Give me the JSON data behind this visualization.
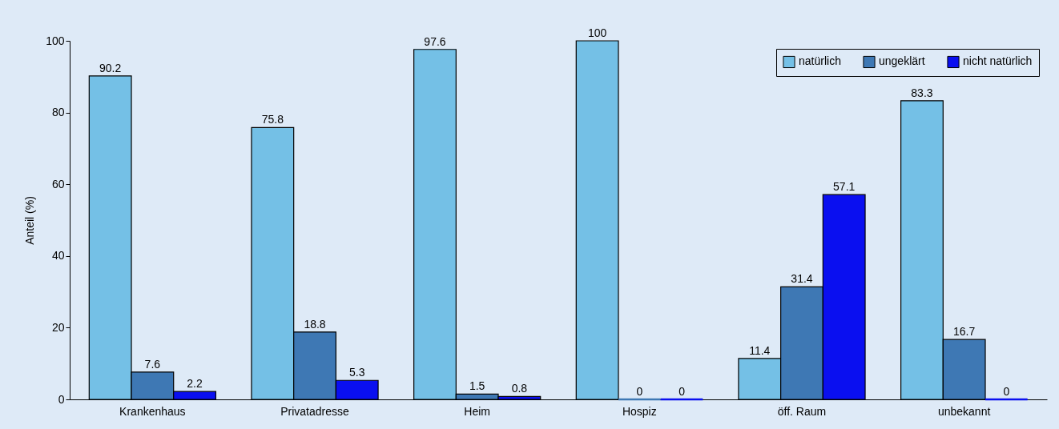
{
  "chart_data": {
    "type": "bar",
    "ylabel": "Anteil (%)",
    "categories": [
      "Krankenhaus",
      "Privatadresse",
      "Heim",
      "Hospiz",
      "öff. Raum",
      "unbekannt"
    ],
    "series": [
      {
        "name": "natürlich",
        "color": "#74c0e6",
        "values": [
          90.2,
          75.8,
          97.6,
          100,
          11.4,
          83.3
        ]
      },
      {
        "name": "ungeklärt",
        "color": "#3e78b4",
        "values": [
          7.6,
          18.8,
          1.5,
          0,
          31.4,
          16.7
        ]
      },
      {
        "name": "nicht natürlich",
        "color": "#0a0ff0",
        "values": [
          2.2,
          5.3,
          0.8,
          0,
          57.1,
          0
        ]
      }
    ],
    "ylim": [
      0,
      100
    ],
    "yticks": [
      0,
      20,
      40,
      60,
      80,
      100
    ],
    "grid": false,
    "legend": "top right",
    "data_labels": true
  }
}
